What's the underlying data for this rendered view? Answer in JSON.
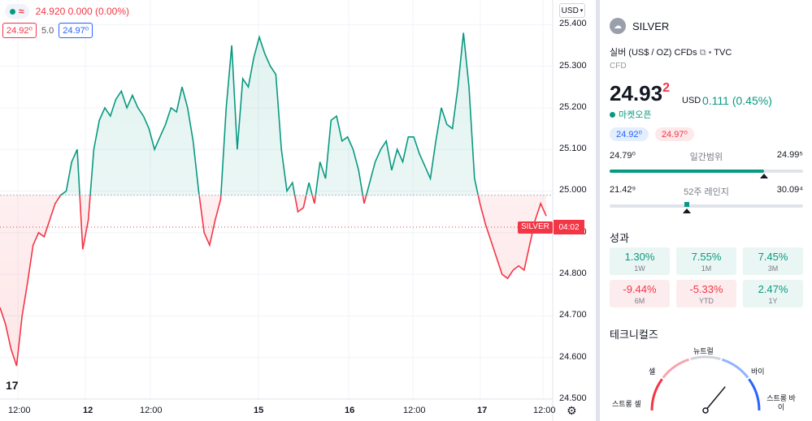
{
  "legend": {
    "price_line": "24.920  0.000 (0.00%)",
    "bid": "24.92⁰",
    "spread": "5.0",
    "ask": "24.97⁰"
  },
  "axis": {
    "currency_button": "USD",
    "y_ticks": [
      "25.400",
      "25.300",
      "25.200",
      "25.100",
      "25.000",
      "24.900",
      "24.800",
      "24.700",
      "24.600",
      "24.500"
    ],
    "x_ticks": [
      "12:00",
      "12",
      "12:00",
      "15",
      "16",
      "12:00",
      "17",
      "12:00"
    ],
    "series_tag": "SILVER",
    "countdown_tag": "04:02"
  },
  "colors": {
    "up": "#089981",
    "down": "#f23645",
    "accent": "#2962ff"
  },
  "chart_data": {
    "type": "line",
    "baseline": 24.99,
    "ylim": [
      24.5,
      25.42
    ],
    "values": [
      24.72,
      24.68,
      24.62,
      24.58,
      24.7,
      24.78,
      24.87,
      24.9,
      24.89,
      24.93,
      24.97,
      24.99,
      25.0,
      25.07,
      25.1,
      24.86,
      24.93,
      25.1,
      25.17,
      25.2,
      25.18,
      25.22,
      25.24,
      25.2,
      25.23,
      25.2,
      25.18,
      25.15,
      25.1,
      25.13,
      25.16,
      25.2,
      25.19,
      25.25,
      25.2,
      25.12,
      25.0,
      24.9,
      24.87,
      24.93,
      24.98,
      25.2,
      25.35,
      25.1,
      25.27,
      25.25,
      25.32,
      25.37,
      25.33,
      25.3,
      25.28,
      25.1,
      25.0,
      25.02,
      24.95,
      24.96,
      25.02,
      24.97,
      25.07,
      25.03,
      25.17,
      25.18,
      25.12,
      25.13,
      25.1,
      25.05,
      24.97,
      25.02,
      25.07,
      25.1,
      25.12,
      25.05,
      25.1,
      25.07,
      25.13,
      25.13,
      25.09,
      25.06,
      25.03,
      25.12,
      25.2,
      25.16,
      25.15,
      25.25,
      25.38,
      25.25,
      25.03,
      24.97,
      24.92,
      24.88,
      24.84,
      24.8,
      24.79,
      24.81,
      24.82,
      24.81,
      24.87,
      24.93,
      24.97,
      24.94
    ]
  },
  "sidebar": {
    "symbol": "SILVER",
    "description": "실버 (US$ / OZ) CFDs",
    "source": "TVC",
    "type": "CFD",
    "price_main": "24.93",
    "price_last_digit": "2",
    "currency": "USD",
    "change": "0.111 (0.45%)",
    "market_status": "마켓오픈",
    "bid": "24.92⁰",
    "ask": "24.97⁰",
    "day_range": {
      "low": "24.79⁰",
      "label": "일간범위",
      "high": "24.99⁵",
      "fraction": 0.8
    },
    "week52_range": {
      "low": "21.42⁹",
      "label": "52주 레인지",
      "high": "30.09⁴",
      "fraction": 0.4
    },
    "performance_title": "성과",
    "performance": [
      {
        "value": "1.30%",
        "label": "1W",
        "sign": "pos"
      },
      {
        "value": "7.55%",
        "label": "1M",
        "sign": "pos"
      },
      {
        "value": "7.45%",
        "label": "3M",
        "sign": "pos"
      },
      {
        "value": "-9.44%",
        "label": "6M",
        "sign": "neg"
      },
      {
        "value": "-5.33%",
        "label": "YTD",
        "sign": "neg"
      },
      {
        "value": "2.47%",
        "label": "1Y",
        "sign": "pos"
      }
    ],
    "technicals_title": "테크니컬즈",
    "gauge_labels": {
      "neutral": "뉴트럴",
      "sell": "셀",
      "buy": "바이",
      "strong_sell": "스트롱 셀",
      "strong_buy": "스트롱 바이"
    }
  }
}
